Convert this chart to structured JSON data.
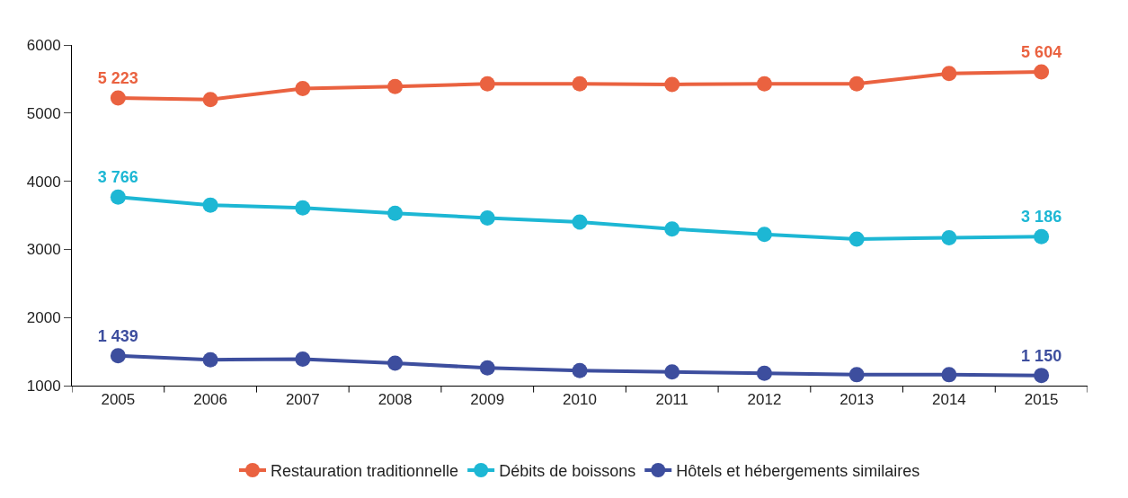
{
  "chart_data": {
    "type": "line",
    "categories": [
      "2005",
      "2006",
      "2007",
      "2008",
      "2009",
      "2010",
      "2011",
      "2012",
      "2013",
      "2014",
      "2015"
    ],
    "series": [
      {
        "name": "Restauration traditionnelle",
        "color": "#ea6240",
        "values": [
          5223,
          5200,
          5360,
          5390,
          5430,
          5430,
          5420,
          5430,
          5430,
          5580,
          5604
        ],
        "value_labels": [
          "5 223",
          null,
          null,
          null,
          null,
          null,
          null,
          null,
          null,
          null,
          "5 604"
        ]
      },
      {
        "name": "Débits de boissons",
        "color": "#1db7d4",
        "values": [
          3766,
          3650,
          3610,
          3530,
          3460,
          3400,
          3300,
          3220,
          3150,
          3170,
          3186
        ],
        "value_labels": [
          "3 766",
          null,
          null,
          null,
          null,
          null,
          null,
          null,
          null,
          null,
          "3 186"
        ]
      },
      {
        "name": "Hôtels et hébergements similaires",
        "color": "#3d4e9e",
        "values": [
          1439,
          1380,
          1390,
          1330,
          1260,
          1220,
          1200,
          1180,
          1160,
          1160,
          1150
        ],
        "value_labels": [
          "1 439",
          null,
          null,
          null,
          null,
          null,
          null,
          null,
          null,
          null,
          "1 150"
        ]
      }
    ],
    "ylim": [
      1000,
      6000
    ],
    "yticks": [
      1000,
      2000,
      3000,
      4000,
      5000,
      6000
    ],
    "legend": "bottom",
    "marker": "circle",
    "line_style": "solid"
  }
}
